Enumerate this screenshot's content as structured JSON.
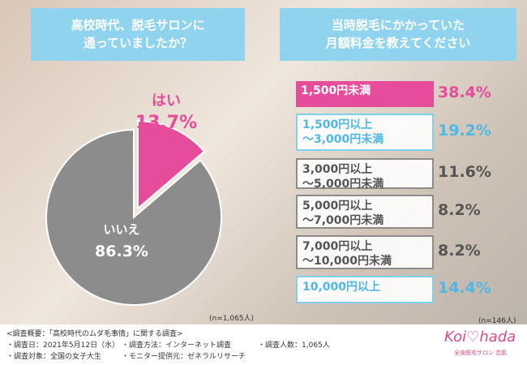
{
  "chart_data": [
    {
      "type": "pie",
      "title": [
        "高校時代、脱毛サロンに",
        "通っていましたか？"
      ],
      "categories": [
        "はい",
        "いいえ"
      ],
      "values": [
        13.7,
        86.3
      ],
      "value_labels": [
        "13.7%",
        "86.3%"
      ],
      "colors": [
        "#e64c9a",
        "#8c8c8c"
      ],
      "annotation": "(n=1,065人)"
    },
    {
      "type": "bar",
      "title": [
        "当時脱毛にかかっていた",
        "月額料金を教えてください"
      ],
      "categories": [
        "1,500円未満",
        "1,500円以上\n〜3,000円未満",
        "3,000円以上\n〜5,000円未満",
        "5,000円以上\n〜7,000円未満",
        "7,000円以上\n〜10,000円未満",
        "10,000円以上"
      ],
      "values": [
        38.4,
        19.2,
        11.6,
        8.2,
        8.2,
        14.4
      ],
      "value_labels": [
        "38.4%",
        "19.2%",
        "11.6%",
        "8.2%",
        "8.2%",
        "14.4%"
      ],
      "colors": [
        "#e64c9a",
        "#7fd0ef",
        "#8c8c8c",
        "#8c8c8c",
        "#8c8c8c",
        "#7fd0ef"
      ],
      "annotation": "(n=146人)"
    }
  ],
  "footer": {
    "heading": "<調査概要：「高校時代のムダ毛事情」に関する調査>",
    "items": [
      "・調査日：2021年5月12日（水）",
      "・調査方法：インターネット調査",
      "・調査人数：1,065人",
      "・調査対象：全国の女子大生",
      "・モニター提供元：ゼネラルリサーチ"
    ],
    "logo": "Koi♡hada",
    "logo_sub": "全身脱毛サロン 恋肌"
  }
}
